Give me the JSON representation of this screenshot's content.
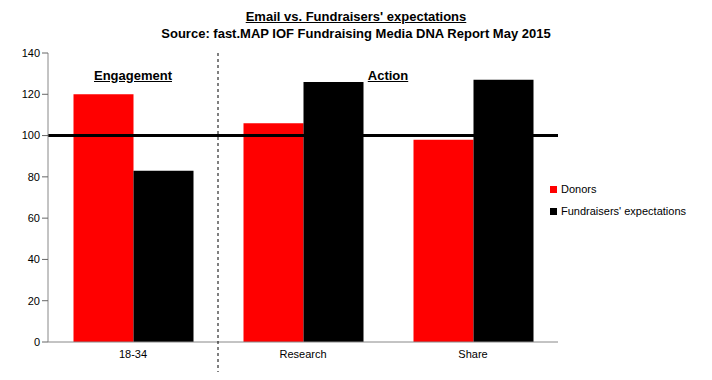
{
  "chart_data": {
    "type": "bar",
    "title": "Email vs. Fundraisers' expectations",
    "subtitle": "Source: fast.MAP IOF Fundraising Media DNA Report May 2015",
    "categories": [
      "18-34",
      "Research",
      "Share"
    ],
    "series": [
      {
        "name": "Donors",
        "color": "#ff0000",
        "values": [
          120,
          106,
          98
        ]
      },
      {
        "name": "Fundraisers' expectations",
        "color": "#000000",
        "values": [
          83,
          126,
          127
        ]
      }
    ],
    "ylim": [
      0,
      140
    ],
    "yticks": [
      0,
      20,
      40,
      60,
      80,
      100,
      120,
      140
    ],
    "grid": false,
    "legend": "right",
    "reference_line": 100,
    "groups": [
      {
        "label": "Engagement",
        "categories": [
          "18-34"
        ]
      },
      {
        "label": "Action",
        "categories": [
          "Research",
          "Share"
        ]
      }
    ]
  }
}
